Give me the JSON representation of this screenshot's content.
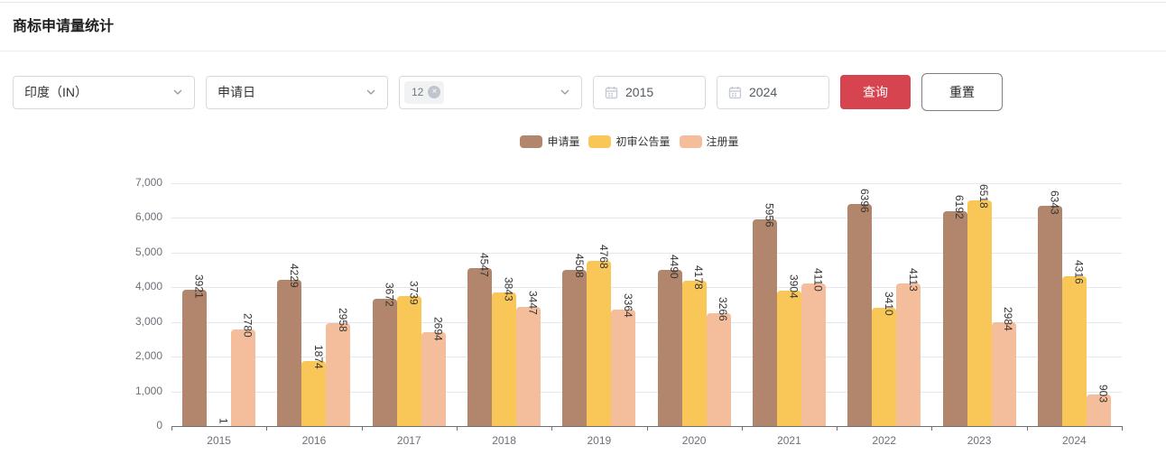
{
  "header": {
    "title": "商标申请量统计"
  },
  "filters": {
    "country_select": {
      "value": "印度（IN）"
    },
    "date_type_select": {
      "value": "申请日"
    },
    "class_select": {
      "tag": "12",
      "close_glyph": "×"
    },
    "start_year": {
      "value": "2015"
    },
    "end_year": {
      "value": "2024"
    },
    "query_label": "查询",
    "reset_label": "重置"
  },
  "icons": {
    "country_select": "chevron-down",
    "date_type_select": "chevron-down",
    "class_select": "chevron-down",
    "class_tag_close": "circle-x",
    "start_year": "calendar",
    "end_year": "calendar"
  },
  "colors": {
    "accent_red": "#d6454f",
    "series_brown": "#B1866C",
    "series_yellow": "#F9C757",
    "series_peach": "#F4BD9B",
    "axis_label": "#6e7079",
    "gridline": "#e2e8f1"
  },
  "chart_data": {
    "type": "bar",
    "title": "",
    "categories": [
      "2015",
      "2016",
      "2017",
      "2018",
      "2019",
      "2020",
      "2021",
      "2022",
      "2023",
      "2024"
    ],
    "series": [
      {
        "name": "申请量",
        "color": "#B1866C",
        "values": [
          3921,
          4229,
          3672,
          4547,
          4508,
          4490,
          5956,
          6396,
          6192,
          6343
        ]
      },
      {
        "name": "初审公告量",
        "color": "#F9C757",
        "values": [
          1,
          1874,
          3739,
          3843,
          4768,
          4178,
          3904,
          3410,
          6518,
          4316
        ]
      },
      {
        "name": "注册量",
        "color": "#F4BD9B",
        "values": [
          2780,
          2958,
          2694,
          3447,
          3364,
          3266,
          4110,
          4113,
          2984,
          903
        ]
      }
    ],
    "xlabel": "",
    "ylabel": "",
    "ylim": [
      0,
      7000
    ],
    "ytick_step": 1000,
    "ytick_labels": [
      "0",
      "1,000",
      "2,000",
      "3,000",
      "4,000",
      "5,000",
      "6,000",
      "7,000"
    ],
    "grid": true,
    "legend_position": "top-center",
    "value_labels": "rotated-90-above-bars"
  }
}
